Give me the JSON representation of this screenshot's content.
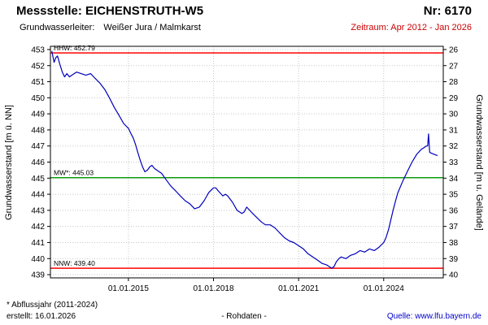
{
  "header": {
    "station_label": "Messstelle: EICHENSTRUTH-W5",
    "number": "Nr: 6170",
    "aquifer_label": "Grundwasserleiter:",
    "aquifer_value": "Weißer Jura / Malmkarst",
    "period": "Zeitraum: Apr 2012 - Jan 2026"
  },
  "footer": {
    "note": "* Abflussjahr (2011-2024)",
    "created": "erstellt: 16.01.2026",
    "center": "- Rohdaten -",
    "source_label": "Quelle:",
    "source_link": "www.lfu.bayern.de"
  },
  "chart_data": {
    "type": "line",
    "ylabel_left": "Grundwasserstand [m ü. NN]",
    "ylabel_right": "Grundwasserstand [m u. Gelände]",
    "y_left_ticks": [
      439,
      440,
      441,
      442,
      443,
      444,
      445,
      446,
      447,
      448,
      449,
      450,
      451,
      452,
      453
    ],
    "y_right_ticks": [
      26,
      27,
      28,
      29,
      30,
      31,
      32,
      33,
      34,
      35,
      36,
      37,
      38,
      39,
      40
    ],
    "right_axis_offset": 479,
    "y_left_range": [
      438.8,
      453.2
    ],
    "x_range": [
      2012.25,
      2026.1
    ],
    "x_tick_positions": [
      2015.0,
      2018.0,
      2021.0,
      2024.0
    ],
    "x_tick_labels": [
      "01.01.2015",
      "01.01.2018",
      "01.01.2021",
      "01.01.2024"
    ],
    "grid": true,
    "reference_lines": [
      {
        "name": "HHW",
        "label": "HHW: 452.79",
        "value": 452.79,
        "color": "#ff0000"
      },
      {
        "name": "MW",
        "label": "MW*: 445.03",
        "value": 445.03,
        "color": "#009900"
      },
      {
        "name": "NNW",
        "label": "NNW: 439.40",
        "value": 439.4,
        "color": "#ff0000"
      }
    ],
    "series": [
      {
        "name": "Rohdaten",
        "color": "#0000bb",
        "x": [
          2012.3,
          2012.38,
          2012.44,
          2012.5,
          2012.58,
          2012.67,
          2012.75,
          2012.83,
          2012.92,
          2013.0,
          2013.17,
          2013.33,
          2013.5,
          2013.67,
          2013.83,
          2014.0,
          2014.17,
          2014.33,
          2014.5,
          2014.67,
          2014.83,
          2015.0,
          2015.08,
          2015.17,
          2015.25,
          2015.33,
          2015.42,
          2015.5,
          2015.58,
          2015.67,
          2015.75,
          2015.83,
          2015.92,
          2016.0,
          2016.17,
          2016.33,
          2016.5,
          2016.67,
          2016.83,
          2017.0,
          2017.17,
          2017.33,
          2017.5,
          2017.67,
          2017.83,
          2018.0,
          2018.08,
          2018.17,
          2018.33,
          2018.42,
          2018.5,
          2018.67,
          2018.83,
          2019.0,
          2019.08,
          2019.17,
          2019.33,
          2019.5,
          2019.67,
          2019.83,
          2020.0,
          2020.17,
          2020.33,
          2020.5,
          2020.67,
          2020.83,
          2021.0,
          2021.17,
          2021.33,
          2021.5,
          2021.67,
          2021.83,
          2022.0,
          2022.08,
          2022.17,
          2022.25,
          2022.33,
          2022.42,
          2022.5,
          2022.67,
          2022.83,
          2023.0,
          2023.17,
          2023.33,
          2023.5,
          2023.67,
          2023.83,
          2024.0,
          2024.08,
          2024.17,
          2024.25,
          2024.33,
          2024.42,
          2024.5,
          2024.67,
          2024.83,
          2025.0,
          2025.17,
          2025.33,
          2025.42,
          2025.5,
          2025.55,
          2025.58,
          2025.62,
          2025.75,
          2025.9
        ],
        "y": [
          452.9,
          452.2,
          452.5,
          452.6,
          452.1,
          451.6,
          451.3,
          451.5,
          451.3,
          451.4,
          451.6,
          451.5,
          451.4,
          451.5,
          451.2,
          450.9,
          450.5,
          450.0,
          449.4,
          448.9,
          448.4,
          448.1,
          447.8,
          447.5,
          447.1,
          446.6,
          446.1,
          445.7,
          445.4,
          445.5,
          445.7,
          445.8,
          445.6,
          445.5,
          445.3,
          444.9,
          444.5,
          444.2,
          443.9,
          443.6,
          443.4,
          443.1,
          443.2,
          443.6,
          444.1,
          444.4,
          444.4,
          444.2,
          443.9,
          444.0,
          443.9,
          443.5,
          443.0,
          442.8,
          442.9,
          443.2,
          442.9,
          442.6,
          442.3,
          442.1,
          442.1,
          441.9,
          441.6,
          441.3,
          441.1,
          441.0,
          440.8,
          440.6,
          440.3,
          440.1,
          439.9,
          439.7,
          439.6,
          439.5,
          439.4,
          439.5,
          439.8,
          440.0,
          440.1,
          440.0,
          440.2,
          440.3,
          440.5,
          440.4,
          440.6,
          440.5,
          440.7,
          441.0,
          441.3,
          441.8,
          442.4,
          443.0,
          443.6,
          444.1,
          444.8,
          445.4,
          446.0,
          446.5,
          446.8,
          446.9,
          447.0,
          447.0,
          447.75,
          446.6,
          446.5,
          446.4
        ]
      }
    ]
  },
  "colors": {
    "series": "#0000bb",
    "hhw_nnw": "#ff0000",
    "mw": "#009900",
    "grid": "#c8c8c8",
    "period_text": "#cc0000",
    "source_text": "#0000cc"
  }
}
